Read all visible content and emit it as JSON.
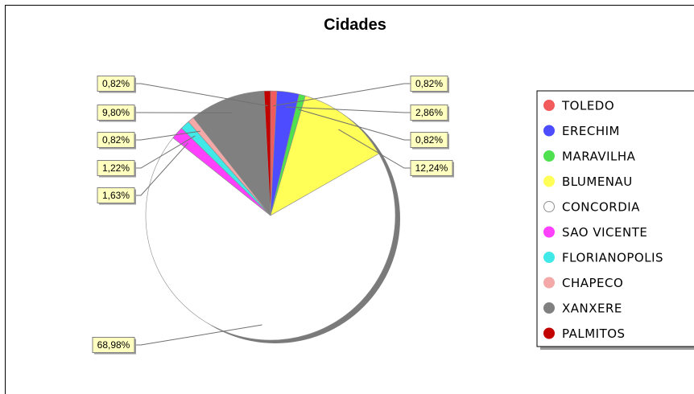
{
  "chart_data": {
    "type": "pie",
    "title": "Cidades",
    "categories": [
      "TOLEDO",
      "ERECHIM",
      "MARAVILHA",
      "BLUMENAU",
      "CONCORDIA",
      "SAO VICENTE",
      "FLORIANOPOLIS",
      "CHAPECO",
      "XANXERE",
      "PALMITOS"
    ],
    "values": [
      0.82,
      2.86,
      0.82,
      12.24,
      68.98,
      1.63,
      1.22,
      0.82,
      9.8,
      0.82
    ],
    "labels": [
      "0,82%",
      "2,86%",
      "0,82%",
      "12,24%",
      "68,98%",
      "1,63%",
      "1,22%",
      "0,82%",
      "9,80%",
      "0,82%"
    ],
    "colors": [
      "#f25b5b",
      "#4d4dff",
      "#4ee04e",
      "#ffff57",
      "#ffffff",
      "#ff40ff",
      "#40e8e8",
      "#f4a8a8",
      "#808080",
      "#c20000"
    ],
    "legend": "right"
  }
}
